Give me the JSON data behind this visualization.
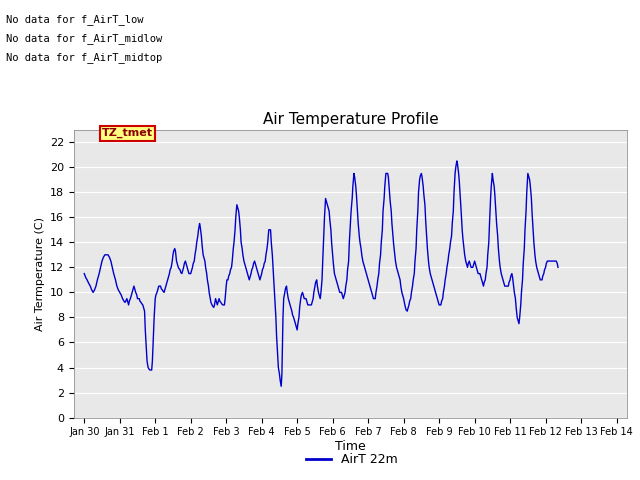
{
  "title": "Air Temperature Profile",
  "xlabel": "Time",
  "ylabel": "Air Termperature (C)",
  "legend_label": "AirT 22m",
  "line_color": "#0000cc",
  "plot_bg_color": "#e8e8e8",
  "fig_bg_color": "#ffffff",
  "ylim": [
    0,
    23
  ],
  "yticks": [
    0,
    2,
    4,
    6,
    8,
    10,
    12,
    14,
    16,
    18,
    20,
    22
  ],
  "xlim": [
    -0.3,
    15.3
  ],
  "xtick_positions": [
    0,
    1,
    2,
    3,
    4,
    5,
    6,
    7,
    8,
    9,
    10,
    11,
    12,
    13,
    14,
    15
  ],
  "xtick_labels": [
    "Jan 30",
    "Jan 31",
    "Feb 1",
    "Feb 2",
    "Feb 3",
    "Feb 4",
    "Feb 5",
    "Feb 6",
    "Feb 7",
    "Feb 8",
    "Feb 9",
    "Feb 10",
    "Feb 11",
    "Feb 12",
    "Feb 13",
    "Feb 14"
  ],
  "annotations": [
    "No data for f_AirT_low",
    "No data for f_AirT_midlow",
    "No data for f_AirT_midtop"
  ],
  "tz_label": "TZ_tmet",
  "temperature_data": [
    [
      0.0,
      11.5
    ],
    [
      0.04,
      11.2
    ],
    [
      0.08,
      11.0
    ],
    [
      0.13,
      10.7
    ],
    [
      0.17,
      10.5
    ],
    [
      0.21,
      10.2
    ],
    [
      0.25,
      10.0
    ],
    [
      0.29,
      10.2
    ],
    [
      0.33,
      10.5
    ],
    [
      0.37,
      11.0
    ],
    [
      0.42,
      11.5
    ],
    [
      0.46,
      12.0
    ],
    [
      0.5,
      12.5
    ],
    [
      0.54,
      12.8
    ],
    [
      0.58,
      13.0
    ],
    [
      0.63,
      13.0
    ],
    [
      0.67,
      13.0
    ],
    [
      0.71,
      12.8
    ],
    [
      0.75,
      12.5
    ],
    [
      0.79,
      12.0
    ],
    [
      0.83,
      11.5
    ],
    [
      0.88,
      11.0
    ],
    [
      0.92,
      10.5
    ],
    [
      0.96,
      10.2
    ],
    [
      1.0,
      10.0
    ],
    [
      1.04,
      9.8
    ],
    [
      1.08,
      9.5
    ],
    [
      1.12,
      9.3
    ],
    [
      1.15,
      9.2
    ],
    [
      1.17,
      9.3
    ],
    [
      1.2,
      9.5
    ],
    [
      1.22,
      9.3
    ],
    [
      1.25,
      9.0
    ],
    [
      1.27,
      9.3
    ],
    [
      1.3,
      9.5
    ],
    [
      1.33,
      9.8
    ],
    [
      1.35,
      10.0
    ],
    [
      1.38,
      10.3
    ],
    [
      1.4,
      10.5
    ],
    [
      1.42,
      10.3
    ],
    [
      1.45,
      10.0
    ],
    [
      1.48,
      9.8
    ],
    [
      1.5,
      9.5
    ],
    [
      1.52,
      9.5
    ],
    [
      1.55,
      9.5
    ],
    [
      1.57,
      9.3
    ],
    [
      1.6,
      9.2
    ],
    [
      1.62,
      9.1
    ],
    [
      1.65,
      9.0
    ],
    [
      1.67,
      8.8
    ],
    [
      1.7,
      8.5
    ],
    [
      1.72,
      7.0
    ],
    [
      1.75,
      5.5
    ],
    [
      1.77,
      4.5
    ],
    [
      1.8,
      4.0
    ],
    [
      1.82,
      3.9
    ],
    [
      1.85,
      3.8
    ],
    [
      1.87,
      3.8
    ],
    [
      1.9,
      3.8
    ],
    [
      1.92,
      4.5
    ],
    [
      1.95,
      6.5
    ],
    [
      1.97,
      8.0
    ],
    [
      2.0,
      9.5
    ],
    [
      2.02,
      9.8
    ],
    [
      2.05,
      10.0
    ],
    [
      2.08,
      10.3
    ],
    [
      2.1,
      10.5
    ],
    [
      2.12,
      10.5
    ],
    [
      2.15,
      10.5
    ],
    [
      2.17,
      10.3
    ],
    [
      2.2,
      10.2
    ],
    [
      2.22,
      10.1
    ],
    [
      2.25,
      10.0
    ],
    [
      2.27,
      10.2
    ],
    [
      2.3,
      10.5
    ],
    [
      2.33,
      10.8
    ],
    [
      2.35,
      11.0
    ],
    [
      2.38,
      11.3
    ],
    [
      2.4,
      11.5
    ],
    [
      2.42,
      11.8
    ],
    [
      2.45,
      12.0
    ],
    [
      2.48,
      12.5
    ],
    [
      2.5,
      13.0
    ],
    [
      2.52,
      13.3
    ],
    [
      2.55,
      13.5
    ],
    [
      2.57,
      13.3
    ],
    [
      2.6,
      12.5
    ],
    [
      2.62,
      12.3
    ],
    [
      2.65,
      12.0
    ],
    [
      2.67,
      11.9
    ],
    [
      2.7,
      11.8
    ],
    [
      2.72,
      11.6
    ],
    [
      2.75,
      11.5
    ],
    [
      2.77,
      11.7
    ],
    [
      2.8,
      12.0
    ],
    [
      2.82,
      12.3
    ],
    [
      2.85,
      12.5
    ],
    [
      2.87,
      12.3
    ],
    [
      2.9,
      12.0
    ],
    [
      2.92,
      11.8
    ],
    [
      2.95,
      11.5
    ],
    [
      2.97,
      11.5
    ],
    [
      3.0,
      11.5
    ],
    [
      3.02,
      11.7
    ],
    [
      3.05,
      12.0
    ],
    [
      3.07,
      12.3
    ],
    [
      3.1,
      12.5
    ],
    [
      3.12,
      13.0
    ],
    [
      3.15,
      13.5
    ],
    [
      3.17,
      14.0
    ],
    [
      3.2,
      14.5
    ],
    [
      3.22,
      15.0
    ],
    [
      3.25,
      15.5
    ],
    [
      3.27,
      15.2
    ],
    [
      3.3,
      14.5
    ],
    [
      3.32,
      13.8
    ],
    [
      3.35,
      13.0
    ],
    [
      3.37,
      12.8
    ],
    [
      3.4,
      12.5
    ],
    [
      3.42,
      12.0
    ],
    [
      3.45,
      11.5
    ],
    [
      3.47,
      11.0
    ],
    [
      3.5,
      10.5
    ],
    [
      3.52,
      10.0
    ],
    [
      3.55,
      9.5
    ],
    [
      3.57,
      9.2
    ],
    [
      3.6,
      9.0
    ],
    [
      3.62,
      8.9
    ],
    [
      3.65,
      8.8
    ],
    [
      3.67,
      9.0
    ],
    [
      3.7,
      9.5
    ],
    [
      3.72,
      9.3
    ],
    [
      3.75,
      9.0
    ],
    [
      3.77,
      9.2
    ],
    [
      3.8,
      9.5
    ],
    [
      3.82,
      9.3
    ],
    [
      3.85,
      9.2
    ],
    [
      3.87,
      9.1
    ],
    [
      3.9,
      9.0
    ],
    [
      3.92,
      9.0
    ],
    [
      3.95,
      9.0
    ],
    [
      3.97,
      9.5
    ],
    [
      4.0,
      10.5
    ],
    [
      4.02,
      11.0
    ],
    [
      4.05,
      11.0
    ],
    [
      4.07,
      11.3
    ],
    [
      4.1,
      11.5
    ],
    [
      4.12,
      11.8
    ],
    [
      4.15,
      12.0
    ],
    [
      4.17,
      12.5
    ],
    [
      4.2,
      13.5
    ],
    [
      4.22,
      14.0
    ],
    [
      4.25,
      15.0
    ],
    [
      4.27,
      16.0
    ],
    [
      4.3,
      17.0
    ],
    [
      4.32,
      16.8
    ],
    [
      4.35,
      16.5
    ],
    [
      4.37,
      16.0
    ],
    [
      4.4,
      15.0
    ],
    [
      4.42,
      14.0
    ],
    [
      4.45,
      13.5
    ],
    [
      4.47,
      13.0
    ],
    [
      4.5,
      12.5
    ],
    [
      4.52,
      12.3
    ],
    [
      4.55,
      12.0
    ],
    [
      4.57,
      11.8
    ],
    [
      4.6,
      11.5
    ],
    [
      4.62,
      11.3
    ],
    [
      4.65,
      11.0
    ],
    [
      4.67,
      11.2
    ],
    [
      4.7,
      11.5
    ],
    [
      4.72,
      11.8
    ],
    [
      4.75,
      12.0
    ],
    [
      4.77,
      12.3
    ],
    [
      4.8,
      12.5
    ],
    [
      4.82,
      12.3
    ],
    [
      4.85,
      12.0
    ],
    [
      4.87,
      11.8
    ],
    [
      4.9,
      11.5
    ],
    [
      4.92,
      11.3
    ],
    [
      4.95,
      11.0
    ],
    [
      4.97,
      11.2
    ],
    [
      5.0,
      11.5
    ],
    [
      5.02,
      11.8
    ],
    [
      5.05,
      12.0
    ],
    [
      5.07,
      12.3
    ],
    [
      5.1,
      12.5
    ],
    [
      5.12,
      13.0
    ],
    [
      5.15,
      13.5
    ],
    [
      5.17,
      14.0
    ],
    [
      5.2,
      15.0
    ],
    [
      5.22,
      15.0
    ],
    [
      5.25,
      15.0
    ],
    [
      5.27,
      14.0
    ],
    [
      5.3,
      13.0
    ],
    [
      5.32,
      12.0
    ],
    [
      5.35,
      10.5
    ],
    [
      5.37,
      9.5
    ],
    [
      5.4,
      8.0
    ],
    [
      5.42,
      6.5
    ],
    [
      5.45,
      5.0
    ],
    [
      5.47,
      4.0
    ],
    [
      5.5,
      3.5
    ],
    [
      5.52,
      3.0
    ],
    [
      5.55,
      2.5
    ],
    [
      5.57,
      3.5
    ],
    [
      5.6,
      8.0
    ],
    [
      5.62,
      9.5
    ],
    [
      5.65,
      10.0
    ],
    [
      5.67,
      10.3
    ],
    [
      5.7,
      10.5
    ],
    [
      5.72,
      10.0
    ],
    [
      5.75,
      9.5
    ],
    [
      5.77,
      9.3
    ],
    [
      5.8,
      9.0
    ],
    [
      5.82,
      8.8
    ],
    [
      5.85,
      8.5
    ],
    [
      5.87,
      8.2
    ],
    [
      5.9,
      8.0
    ],
    [
      5.92,
      7.8
    ],
    [
      5.95,
      7.5
    ],
    [
      5.97,
      7.3
    ],
    [
      6.0,
      7.0
    ],
    [
      6.02,
      7.5
    ],
    [
      6.05,
      8.0
    ],
    [
      6.07,
      8.8
    ],
    [
      6.1,
      9.5
    ],
    [
      6.12,
      9.8
    ],
    [
      6.15,
      10.0
    ],
    [
      6.17,
      9.8
    ],
    [
      6.2,
      9.5
    ],
    [
      6.22,
      9.5
    ],
    [
      6.25,
      9.5
    ],
    [
      6.27,
      9.3
    ],
    [
      6.3,
      9.0
    ],
    [
      6.32,
      9.0
    ],
    [
      6.35,
      9.0
    ],
    [
      6.37,
      9.0
    ],
    [
      6.4,
      9.0
    ],
    [
      6.42,
      9.2
    ],
    [
      6.45,
      9.5
    ],
    [
      6.47,
      10.0
    ],
    [
      6.5,
      10.5
    ],
    [
      6.52,
      10.8
    ],
    [
      6.55,
      11.0
    ],
    [
      6.57,
      10.5
    ],
    [
      6.6,
      10.0
    ],
    [
      6.62,
      9.8
    ],
    [
      6.65,
      9.5
    ],
    [
      6.67,
      10.0
    ],
    [
      6.7,
      11.0
    ],
    [
      6.72,
      12.5
    ],
    [
      6.75,
      14.5
    ],
    [
      6.77,
      16.0
    ],
    [
      6.8,
      17.5
    ],
    [
      6.82,
      17.3
    ],
    [
      6.85,
      17.0
    ],
    [
      6.87,
      16.8
    ],
    [
      6.9,
      16.5
    ],
    [
      6.92,
      15.8
    ],
    [
      6.95,
      15.0
    ],
    [
      6.97,
      14.0
    ],
    [
      7.0,
      13.0
    ],
    [
      7.02,
      12.3
    ],
    [
      7.05,
      11.5
    ],
    [
      7.07,
      11.3
    ],
    [
      7.1,
      11.0
    ],
    [
      7.12,
      10.8
    ],
    [
      7.15,
      10.5
    ],
    [
      7.17,
      10.3
    ],
    [
      7.2,
      10.0
    ],
    [
      7.22,
      10.0
    ],
    [
      7.25,
      10.0
    ],
    [
      7.27,
      9.8
    ],
    [
      7.3,
      9.5
    ],
    [
      7.32,
      9.7
    ],
    [
      7.35,
      10.0
    ],
    [
      7.37,
      10.5
    ],
    [
      7.4,
      11.0
    ],
    [
      7.42,
      11.8
    ],
    [
      7.45,
      12.5
    ],
    [
      7.47,
      14.0
    ],
    [
      7.5,
      15.5
    ],
    [
      7.52,
      16.5
    ],
    [
      7.55,
      17.5
    ],
    [
      7.57,
      18.5
    ],
    [
      7.6,
      19.5
    ],
    [
      7.62,
      19.2
    ],
    [
      7.65,
      18.5
    ],
    [
      7.67,
      17.8
    ],
    [
      7.7,
      16.5
    ],
    [
      7.72,
      15.5
    ],
    [
      7.75,
      14.5
    ],
    [
      7.77,
      14.0
    ],
    [
      7.8,
      13.5
    ],
    [
      7.82,
      13.0
    ],
    [
      7.85,
      12.5
    ],
    [
      7.87,
      12.3
    ],
    [
      7.9,
      12.0
    ],
    [
      7.92,
      11.8
    ],
    [
      7.95,
      11.5
    ],
    [
      7.97,
      11.3
    ],
    [
      8.0,
      11.0
    ],
    [
      8.02,
      10.8
    ],
    [
      8.05,
      10.5
    ],
    [
      8.07,
      10.3
    ],
    [
      8.1,
      10.0
    ],
    [
      8.12,
      9.8
    ],
    [
      8.15,
      9.5
    ],
    [
      8.17,
      9.5
    ],
    [
      8.2,
      9.5
    ],
    [
      8.22,
      10.0
    ],
    [
      8.25,
      10.5
    ],
    [
      8.27,
      11.0
    ],
    [
      8.3,
      11.5
    ],
    [
      8.32,
      12.3
    ],
    [
      8.35,
      13.0
    ],
    [
      8.37,
      14.0
    ],
    [
      8.4,
      15.0
    ],
    [
      8.42,
      16.5
    ],
    [
      8.45,
      17.5
    ],
    [
      8.47,
      18.5
    ],
    [
      8.5,
      19.5
    ],
    [
      8.52,
      19.5
    ],
    [
      8.55,
      19.5
    ],
    [
      8.57,
      19.2
    ],
    [
      8.6,
      18.0
    ],
    [
      8.62,
      17.3
    ],
    [
      8.65,
      16.5
    ],
    [
      8.67,
      15.5
    ],
    [
      8.7,
      14.5
    ],
    [
      8.72,
      13.8
    ],
    [
      8.75,
      13.0
    ],
    [
      8.77,
      12.5
    ],
    [
      8.8,
      12.0
    ],
    [
      8.82,
      11.8
    ],
    [
      8.85,
      11.5
    ],
    [
      8.87,
      11.3
    ],
    [
      8.9,
      11.0
    ],
    [
      8.92,
      10.5
    ],
    [
      8.95,
      10.0
    ],
    [
      8.97,
      9.8
    ],
    [
      9.0,
      9.5
    ],
    [
      9.02,
      9.2
    ],
    [
      9.05,
      8.8
    ],
    [
      9.07,
      8.6
    ],
    [
      9.1,
      8.5
    ],
    [
      9.12,
      8.7
    ],
    [
      9.15,
      9.0
    ],
    [
      9.17,
      9.3
    ],
    [
      9.2,
      9.5
    ],
    [
      9.22,
      10.0
    ],
    [
      9.25,
      10.5
    ],
    [
      9.27,
      11.0
    ],
    [
      9.3,
      11.5
    ],
    [
      9.32,
      12.5
    ],
    [
      9.35,
      13.5
    ],
    [
      9.37,
      15.0
    ],
    [
      9.4,
      16.5
    ],
    [
      9.42,
      18.0
    ],
    [
      9.45,
      19.0
    ],
    [
      9.47,
      19.3
    ],
    [
      9.5,
      19.5
    ],
    [
      9.52,
      19.2
    ],
    [
      9.55,
      18.5
    ],
    [
      9.57,
      17.8
    ],
    [
      9.6,
      17.0
    ],
    [
      9.62,
      15.8
    ],
    [
      9.65,
      14.5
    ],
    [
      9.67,
      13.5
    ],
    [
      9.7,
      12.5
    ],
    [
      9.72,
      12.0
    ],
    [
      9.75,
      11.5
    ],
    [
      9.77,
      11.3
    ],
    [
      9.8,
      11.0
    ],
    [
      9.82,
      10.8
    ],
    [
      9.85,
      10.5
    ],
    [
      9.87,
      10.3
    ],
    [
      9.9,
      10.0
    ],
    [
      9.92,
      9.8
    ],
    [
      9.95,
      9.5
    ],
    [
      9.97,
      9.3
    ],
    [
      10.0,
      9.0
    ],
    [
      10.02,
      9.0
    ],
    [
      10.05,
      9.0
    ],
    [
      10.07,
      9.3
    ],
    [
      10.1,
      9.5
    ],
    [
      10.12,
      10.0
    ],
    [
      10.15,
      10.5
    ],
    [
      10.17,
      11.0
    ],
    [
      10.2,
      11.5
    ],
    [
      10.22,
      12.0
    ],
    [
      10.25,
      12.5
    ],
    [
      10.27,
      13.0
    ],
    [
      10.3,
      13.5
    ],
    [
      10.32,
      14.0
    ],
    [
      10.35,
      14.5
    ],
    [
      10.37,
      15.5
    ],
    [
      10.4,
      16.5
    ],
    [
      10.42,
      18.0
    ],
    [
      10.45,
      19.5
    ],
    [
      10.47,
      20.0
    ],
    [
      10.5,
      20.5
    ],
    [
      10.52,
      20.2
    ],
    [
      10.55,
      19.5
    ],
    [
      10.57,
      18.8
    ],
    [
      10.6,
      17.5
    ],
    [
      10.62,
      16.5
    ],
    [
      10.65,
      15.0
    ],
    [
      10.67,
      14.3
    ],
    [
      10.7,
      13.5
    ],
    [
      10.72,
      13.0
    ],
    [
      10.75,
      12.5
    ],
    [
      10.77,
      12.3
    ],
    [
      10.8,
      12.0
    ],
    [
      10.82,
      12.3
    ],
    [
      10.85,
      12.5
    ],
    [
      10.87,
      12.3
    ],
    [
      10.9,
      12.0
    ],
    [
      10.92,
      12.0
    ],
    [
      10.95,
      12.0
    ],
    [
      10.97,
      12.2
    ],
    [
      11.0,
      12.5
    ],
    [
      11.02,
      12.3
    ],
    [
      11.05,
      12.0
    ],
    [
      11.07,
      11.8
    ],
    [
      11.1,
      11.5
    ],
    [
      11.12,
      11.5
    ],
    [
      11.15,
      11.5
    ],
    [
      11.17,
      11.3
    ],
    [
      11.2,
      11.0
    ],
    [
      11.22,
      10.8
    ],
    [
      11.25,
      10.5
    ],
    [
      11.27,
      10.8
    ],
    [
      11.3,
      11.0
    ],
    [
      11.32,
      11.5
    ],
    [
      11.35,
      12.0
    ],
    [
      11.37,
      13.0
    ],
    [
      11.4,
      14.0
    ],
    [
      11.42,
      15.5
    ],
    [
      11.45,
      17.5
    ],
    [
      11.47,
      18.5
    ],
    [
      11.5,
      19.5
    ],
    [
      11.52,
      19.0
    ],
    [
      11.55,
      18.5
    ],
    [
      11.57,
      17.8
    ],
    [
      11.6,
      16.5
    ],
    [
      11.62,
      15.5
    ],
    [
      11.65,
      14.5
    ],
    [
      11.67,
      13.5
    ],
    [
      11.7,
      12.5
    ],
    [
      11.72,
      12.0
    ],
    [
      11.75,
      11.5
    ],
    [
      11.77,
      11.3
    ],
    [
      11.8,
      11.0
    ],
    [
      11.82,
      10.8
    ],
    [
      11.85,
      10.5
    ],
    [
      11.87,
      10.5
    ],
    [
      11.9,
      10.5
    ],
    [
      11.92,
      10.5
    ],
    [
      11.95,
      10.5
    ],
    [
      11.97,
      10.8
    ],
    [
      12.0,
      11.0
    ],
    [
      12.02,
      11.3
    ],
    [
      12.05,
      11.5
    ],
    [
      12.07,
      11.2
    ],
    [
      12.1,
      10.5
    ],
    [
      12.12,
      10.0
    ],
    [
      12.15,
      9.5
    ],
    [
      12.17,
      8.8
    ],
    [
      12.2,
      8.0
    ],
    [
      12.22,
      7.8
    ],
    [
      12.25,
      7.5
    ],
    [
      12.27,
      8.0
    ],
    [
      12.3,
      9.0
    ],
    [
      12.32,
      10.0
    ],
    [
      12.35,
      11.0
    ],
    [
      12.37,
      12.3
    ],
    [
      12.4,
      13.5
    ],
    [
      12.42,
      15.0
    ],
    [
      12.45,
      16.5
    ],
    [
      12.47,
      18.0
    ],
    [
      12.5,
      19.5
    ],
    [
      12.52,
      19.3
    ],
    [
      12.55,
      19.0
    ],
    [
      12.57,
      18.5
    ],
    [
      12.6,
      17.5
    ],
    [
      12.62,
      16.3
    ],
    [
      12.65,
      15.0
    ],
    [
      12.67,
      14.0
    ],
    [
      12.7,
      13.0
    ],
    [
      12.72,
      12.5
    ],
    [
      12.75,
      12.0
    ],
    [
      12.77,
      11.8
    ],
    [
      12.8,
      11.5
    ],
    [
      12.82,
      11.3
    ],
    [
      12.85,
      11.0
    ],
    [
      12.87,
      11.0
    ],
    [
      12.9,
      11.0
    ],
    [
      12.92,
      11.3
    ],
    [
      12.95,
      11.5
    ],
    [
      12.97,
      11.8
    ],
    [
      13.0,
      12.0
    ],
    [
      13.02,
      12.3
    ],
    [
      13.05,
      12.5
    ],
    [
      13.07,
      12.5
    ],
    [
      13.1,
      12.5
    ],
    [
      13.12,
      12.5
    ],
    [
      13.15,
      12.5
    ],
    [
      13.17,
      12.5
    ],
    [
      13.2,
      12.5
    ],
    [
      13.22,
      12.5
    ],
    [
      13.25,
      12.5
    ],
    [
      13.27,
      12.5
    ],
    [
      13.3,
      12.5
    ],
    [
      13.33,
      12.3
    ],
    [
      13.35,
      12.0
    ]
  ]
}
